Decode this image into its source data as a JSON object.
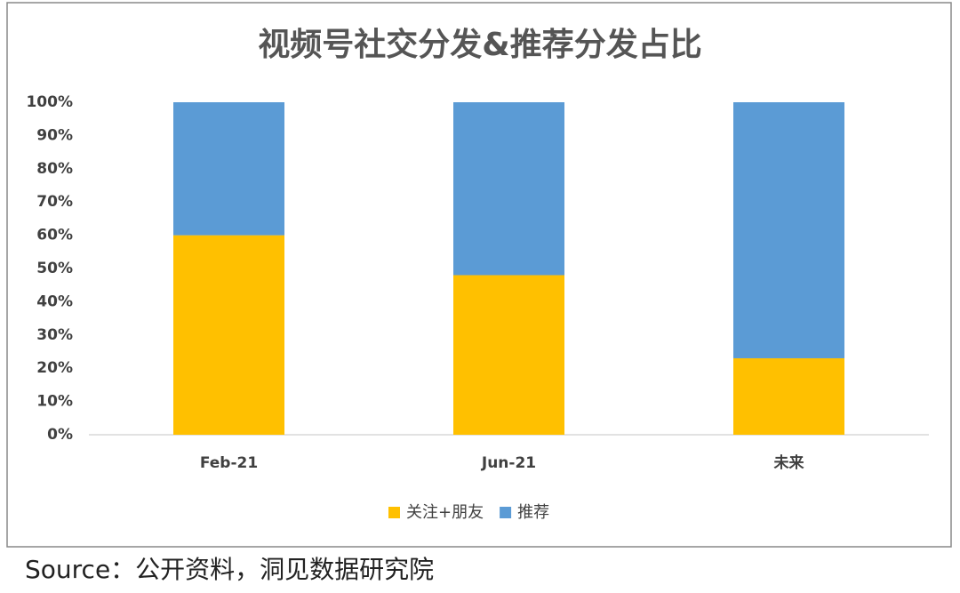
{
  "chart_data": {
    "type": "stacked-bar",
    "title": "视频号社交分发&推荐分发占比",
    "categories": [
      "Feb-21",
      "Jun-21",
      "未来"
    ],
    "series": [
      {
        "name": "关注+朋友",
        "color": "#ffc000",
        "values": [
          60,
          48,
          23
        ]
      },
      {
        "name": "推荐",
        "color": "#5b9bd5",
        "values": [
          40,
          52,
          77
        ]
      }
    ],
    "ylim": [
      0,
      100
    ],
    "yticks": [
      {
        "value": 0,
        "label": "0%"
      },
      {
        "value": 10,
        "label": "10%"
      },
      {
        "value": 20,
        "label": "20%"
      },
      {
        "value": 30,
        "label": "30%"
      },
      {
        "value": 40,
        "label": "40%"
      },
      {
        "value": 50,
        "label": "50%"
      },
      {
        "value": 60,
        "label": "60%"
      },
      {
        "value": 70,
        "label": "70%"
      },
      {
        "value": 80,
        "label": "80%"
      },
      {
        "value": 90,
        "label": "90%"
      },
      {
        "value": 100,
        "label": "100%"
      }
    ],
    "grid": false,
    "legend": "bottom",
    "source": "Source：公开资料，洞见数据研究院"
  }
}
